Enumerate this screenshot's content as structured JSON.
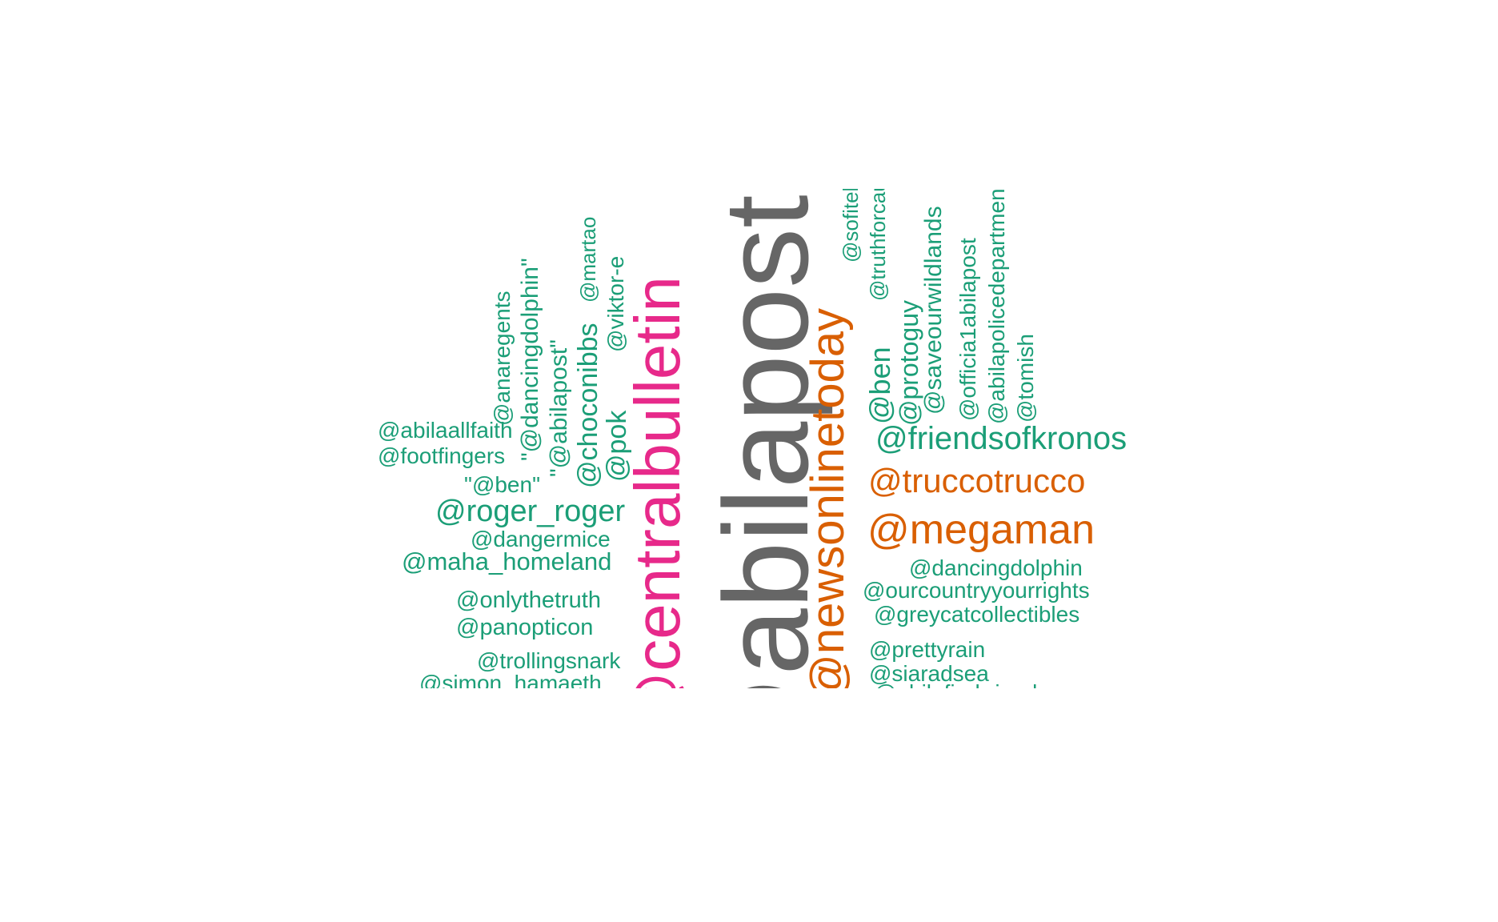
{
  "colors": {
    "green": "#1b9e77",
    "orange": "#d95f02",
    "pink": "#e7298a",
    "gray": "#666666",
    "background": "#ffffff"
  },
  "words": [
    {
      "id": "abilapost-big",
      "text": "@abilapost",
      "color": "gray"
    },
    {
      "id": "centralbulletin",
      "text": "@centralbulletin",
      "color": "pink"
    },
    {
      "id": "newsonlinetoday",
      "text": "@newsonlinetoday",
      "color": "orange"
    },
    {
      "id": "truccotrucco",
      "text": "@truccotrucco",
      "color": "orange"
    },
    {
      "id": "megaman",
      "text": "@megaman",
      "color": "orange"
    },
    {
      "id": "friendsofkronos",
      "text": "@friendsofkronos",
      "color": "green"
    },
    {
      "id": "roger-roger",
      "text": "@roger_roger",
      "color": "green"
    },
    {
      "id": "abilaallfaith",
      "text": "@abilaallfaith",
      "color": "green"
    },
    {
      "id": "footfingers",
      "text": "@footfingers",
      "color": "green"
    },
    {
      "id": "quoted-ben",
      "text": "\"@ben\"",
      "color": "green"
    },
    {
      "id": "dangermice",
      "text": "@dangermice",
      "color": "green"
    },
    {
      "id": "maha-homeland",
      "text": "@maha_homeland",
      "color": "green"
    },
    {
      "id": "onlythetruth",
      "text": "@onlythetruth",
      "color": "green"
    },
    {
      "id": "panopticon",
      "text": "@panopticon",
      "color": "green"
    },
    {
      "id": "trollingsnark",
      "text": "@trollingsnark",
      "color": "green"
    },
    {
      "id": "simon-hamaeth",
      "text": "@simon_hamaeth",
      "color": "green"
    },
    {
      "id": "dancingdolphin-h",
      "text": "@dancingdolphin",
      "color": "green"
    },
    {
      "id": "ourcountryyourrights",
      "text": "@ourcountryyourrights",
      "color": "green"
    },
    {
      "id": "greycatcollectibles",
      "text": "@greycatcollectibles",
      "color": "green"
    },
    {
      "id": "prettyrain",
      "text": "@prettyrain",
      "color": "green"
    },
    {
      "id": "siaradsea",
      "text": "@siaradsea",
      "color": "green"
    },
    {
      "id": "abilafirebrigade",
      "text": "@abilafirebrigade",
      "color": "green"
    },
    {
      "id": "anaregents",
      "text": "@anaregents",
      "color": "green"
    },
    {
      "id": "quoted-dancingdolphin",
      "text": "\"@dancingdolphin\"",
      "color": "green"
    },
    {
      "id": "quoted-abilapost",
      "text": "\"@abilapost\"",
      "color": "green"
    },
    {
      "id": "choconibbs",
      "text": "@choconibbs",
      "color": "green"
    },
    {
      "id": "martao",
      "text": "@martao",
      "color": "green"
    },
    {
      "id": "pok",
      "text": "@pok",
      "color": "green"
    },
    {
      "id": "viktor-e",
      "text": "@viktor-e",
      "color": "green"
    },
    {
      "id": "sofitel",
      "text": "@sofitel",
      "color": "green"
    },
    {
      "id": "truthforcause",
      "text": "@truthforcause",
      "color": "green"
    },
    {
      "id": "ben",
      "text": "@ben",
      "color": "green"
    },
    {
      "id": "protoguy",
      "text": "@protoguy",
      "color": "green"
    },
    {
      "id": "saveourwildlands",
      "text": "@saveourwildlands",
      "color": "green"
    },
    {
      "id": "officia1abilapost",
      "text": "@officia1abilapost",
      "color": "green"
    },
    {
      "id": "abilapolicedepartment",
      "text": "@abilapolicedepartment",
      "color": "green"
    },
    {
      "id": "tomish",
      "text": "@tomish",
      "color": "green"
    }
  ]
}
